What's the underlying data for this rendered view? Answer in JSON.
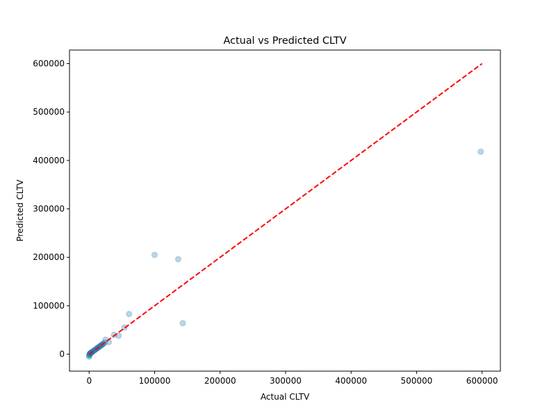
{
  "chart_data": {
    "type": "scatter",
    "title": "Actual vs Predicted CLTV",
    "xlabel": "Actual CLTV",
    "ylabel": "Predicted CLTV",
    "xlim": [
      -30000,
      628000
    ],
    "ylim": [
      -35000,
      628000
    ],
    "x_ticks": [
      0,
      100000,
      200000,
      300000,
      400000,
      500000,
      600000
    ],
    "y_ticks": [
      0,
      100000,
      200000,
      300000,
      400000,
      500000,
      600000
    ],
    "x_tick_labels": [
      "0",
      "100000",
      "200000",
      "300000",
      "400000",
      "500000",
      "600000"
    ],
    "y_tick_labels": [
      "0",
      "100000",
      "200000",
      "300000",
      "400000",
      "500000",
      "600000"
    ],
    "grid": false,
    "legend": "none",
    "colors": {
      "points": "#1f77b4",
      "reference_line": "#ff0000"
    },
    "point_alpha": 0.3,
    "reference_line": {
      "style": "dashed",
      "x": [
        0,
        600000
      ],
      "y": [
        0,
        600000
      ]
    },
    "series": [
      {
        "points": [
          [
            0,
            -5000
          ],
          [
            200,
            -3000
          ],
          [
            500,
            -1000
          ],
          [
            800,
            0
          ],
          [
            1000,
            1000
          ],
          [
            1500,
            1500
          ],
          [
            2000,
            2000
          ],
          [
            2500,
            2500
          ],
          [
            3000,
            3000
          ],
          [
            3500,
            3500
          ],
          [
            4000,
            4000
          ],
          [
            5000,
            5000
          ],
          [
            6000,
            6000
          ],
          [
            7000,
            7000
          ],
          [
            8000,
            8000
          ],
          [
            9000,
            9000
          ],
          [
            10000,
            10000
          ],
          [
            11000,
            11000
          ],
          [
            12000,
            12000
          ],
          [
            13000,
            13000
          ],
          [
            14000,
            14000
          ],
          [
            15000,
            15000
          ],
          [
            16000,
            16000
          ],
          [
            17000,
            17000
          ],
          [
            18000,
            18000
          ],
          [
            19000,
            19000
          ],
          [
            20000,
            20000
          ],
          [
            21000,
            21000
          ],
          [
            22000,
            22000
          ],
          [
            24000,
            24000
          ],
          [
            25000,
            30000
          ],
          [
            30000,
            25000
          ],
          [
            38000,
            40000
          ],
          [
            45000,
            38000
          ],
          [
            54000,
            55000
          ],
          [
            61000,
            83000
          ],
          [
            100000,
            205000
          ],
          [
            136000,
            196000
          ],
          [
            143000,
            64000
          ],
          [
            598000,
            418000
          ]
        ]
      }
    ]
  }
}
